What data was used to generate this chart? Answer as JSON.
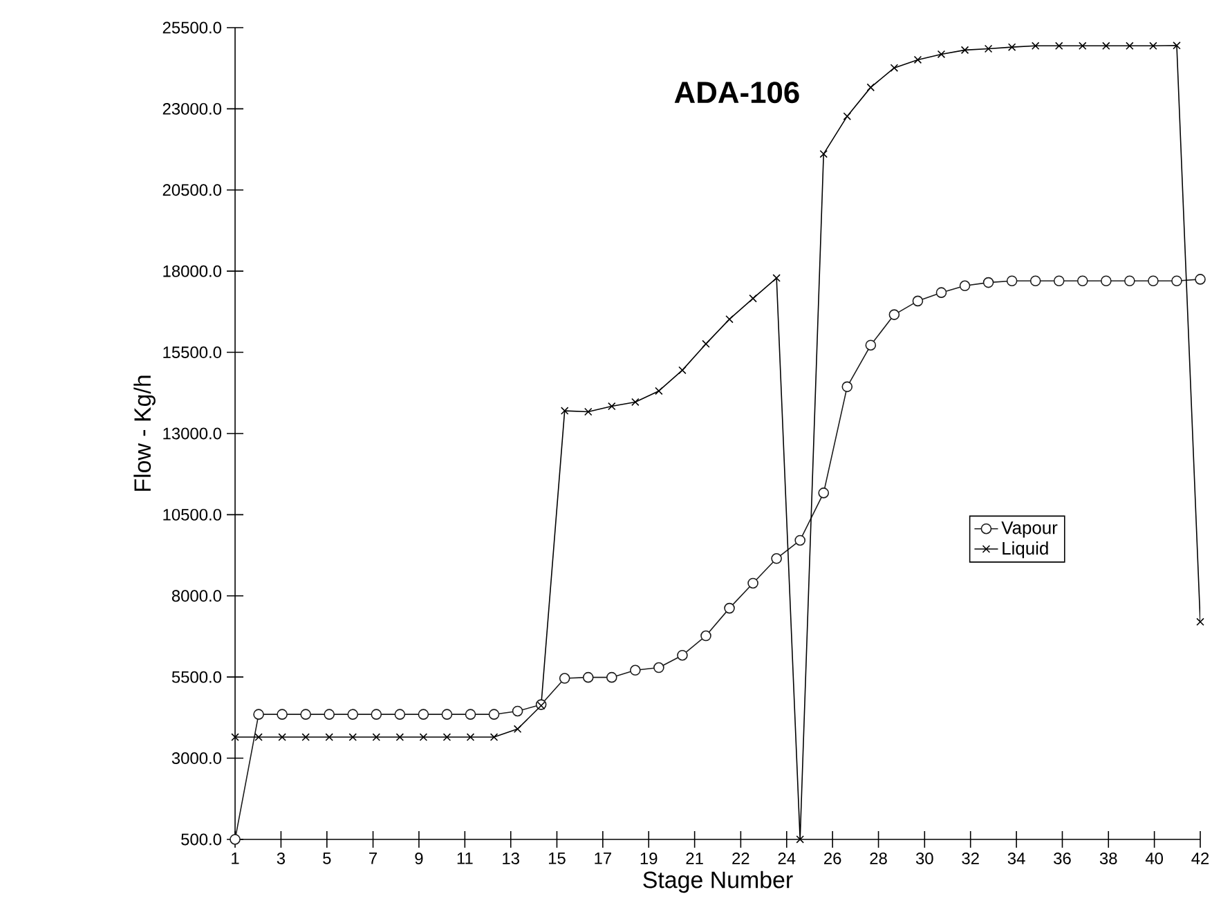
{
  "chart_data": {
    "type": "line",
    "title": "ADA-106",
    "xlabel": "Stage Number",
    "ylabel": "Flow - Kg/h",
    "x": [
      1,
      2,
      3,
      4,
      5,
      6,
      7,
      8,
      9,
      10,
      11,
      12,
      13,
      14,
      15,
      16,
      17,
      18,
      19,
      20,
      21,
      22,
      23,
      24,
      25,
      26,
      27,
      28,
      29,
      30,
      31,
      32,
      33,
      34,
      35,
      36,
      37,
      38,
      39,
      40,
      41,
      42
    ],
    "series": [
      {
        "name": "Vapour",
        "color": "#1a1a1a",
        "marker": "circle",
        "values": [
          500,
          4350,
          4350,
          4350,
          4350,
          4350,
          4350,
          4350,
          4350,
          4350,
          4350,
          4350,
          4450,
          4650,
          5460,
          5490,
          5490,
          5710,
          5790,
          6170,
          6770,
          7620,
          8390,
          9150,
          9710,
          11170,
          14440,
          15720,
          16660,
          17080,
          17340,
          17550,
          17650,
          17700,
          17700,
          17700,
          17700,
          17700,
          17700,
          17700,
          17700,
          17750
        ]
      },
      {
        "name": "Liquid",
        "color": "#000000",
        "marker": "cross",
        "values": [
          3650,
          3650,
          3650,
          3650,
          3650,
          3650,
          3650,
          3650,
          3650,
          3650,
          3650,
          3650,
          3900,
          4620,
          13700,
          13670,
          13840,
          13970,
          14310,
          14950,
          15760,
          16520,
          17160,
          17790,
          500,
          21610,
          22770,
          23660,
          24260,
          24510,
          24680,
          24810,
          24850,
          24900,
          24940,
          24940,
          24940,
          24940,
          24940,
          24940,
          24950,
          7200
        ]
      }
    ],
    "xlim": [
      1,
      42
    ],
    "ylim": [
      500,
      25500
    ],
    "xticks": [
      1,
      {
        "value": 2.95,
        "label": "3"
      },
      {
        "value": 4.9,
        "label": "5"
      },
      {
        "value": 6.86,
        "label": "7"
      },
      {
        "value": 8.81,
        "label": "9"
      },
      {
        "value": 10.76,
        "label": "11"
      },
      {
        "value": 12.71,
        "label": "13"
      },
      {
        "value": 14.67,
        "label": "15"
      },
      {
        "value": 16.62,
        "label": "17"
      },
      {
        "value": 18.57,
        "label": "19"
      },
      {
        "value": 20.52,
        "label": "21"
      },
      {
        "value": 22.48,
        "label": "22"
      },
      {
        "value": 24.43,
        "label": "24"
      },
      {
        "value": 26.38,
        "label": "26"
      },
      {
        "value": 28.33,
        "label": "28"
      },
      {
        "value": 30.29,
        "label": "30"
      },
      {
        "value": 32.24,
        "label": "32"
      },
      {
        "value": 34.19,
        "label": "34"
      },
      {
        "value": 36.14,
        "label": "36"
      },
      {
        "value": 38.1,
        "label": "38"
      },
      {
        "value": 40.05,
        "label": "40"
      },
      42
    ],
    "yticks": [
      {
        "value": 500,
        "label": "500.0"
      },
      {
        "value": 3000,
        "label": "3000.0"
      },
      {
        "value": 5500,
        "label": "5500.0"
      },
      {
        "value": 8000,
        "label": "8000.0"
      },
      {
        "value": 10500,
        "label": "10500.0"
      },
      {
        "value": 13000,
        "label": "13000.0"
      },
      {
        "value": 15500,
        "label": "15500.0"
      },
      {
        "value": 18000,
        "label": "18000.0"
      },
      {
        "value": 20500,
        "label": "20500.0"
      },
      {
        "value": 23000,
        "label": "23000.0"
      },
      {
        "value": 25500,
        "label": "25500.0"
      }
    ],
    "legend": "right",
    "grid": false,
    "line_style": "solid"
  }
}
